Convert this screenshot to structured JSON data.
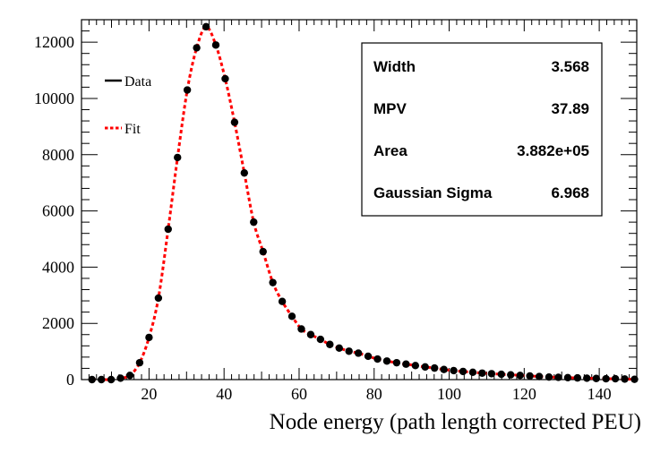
{
  "chart_data": {
    "type": "scatter",
    "title": "",
    "xlabel": "Node energy (path length corrected PEU)",
    "ylabel": "",
    "xlim": [
      2,
      150
    ],
    "ylim": [
      0,
      12800
    ],
    "x_ticks": [
      20,
      40,
      60,
      80,
      100,
      120,
      140
    ],
    "x_tick_labels": [
      "20",
      "40",
      "60",
      "80",
      "100",
      "120",
      "140"
    ],
    "y_ticks": [
      0,
      2000,
      4000,
      6000,
      8000,
      10000,
      12000
    ],
    "y_tick_labels": [
      "0",
      "2000",
      "4000",
      "6000",
      "8000",
      "10000",
      "12000"
    ],
    "legend": {
      "position": "top-left",
      "entries": [
        {
          "label": "Data",
          "style": "line",
          "color": "#000000"
        },
        {
          "label": "Fit",
          "style": "dotted",
          "color": "#ff0000"
        }
      ]
    },
    "stats_box": {
      "position": "top-right",
      "rows": [
        {
          "label": "Width",
          "value": "3.568"
        },
        {
          "label": "MPV",
          "value": "37.89"
        },
        {
          "label": "Area",
          "value": "3.882e+05"
        },
        {
          "label": "Gaussian Sigma",
          "value": "6.968"
        }
      ]
    },
    "series": [
      {
        "name": "Data",
        "color": "#000000",
        "marker": "circle",
        "x": [
          4.8,
          7.3,
          9.9,
          12.4,
          14.9,
          17.5,
          20.0,
          22.5,
          25.1,
          27.6,
          30.2,
          32.7,
          35.2,
          37.8,
          40.3,
          42.8,
          45.4,
          47.9,
          50.4,
          53.0,
          55.5,
          58.1,
          60.6,
          63.1,
          65.7,
          68.2,
          70.7,
          73.3,
          75.8,
          78.4,
          80.9,
          83.4,
          86.0,
          88.5,
          91.0,
          93.6,
          96.1,
          98.6,
          101.2,
          103.7,
          106.3,
          108.8,
          111.3,
          113.9,
          116.4,
          118.9,
          121.5,
          124.0,
          126.6,
          129.1,
          131.6,
          134.2,
          136.7,
          139.2,
          141.8,
          144.3,
          146.8,
          149.4
        ],
        "values": [
          0,
          0,
          0,
          50,
          150,
          600,
          1500,
          2900,
          5350,
          7900,
          10300,
          11800,
          12550,
          11900,
          10700,
          9150,
          7350,
          5600,
          4550,
          3450,
          2780,
          2250,
          1800,
          1600,
          1430,
          1250,
          1120,
          1010,
          940,
          830,
          730,
          660,
          600,
          550,
          500,
          450,
          410,
          360,
          320,
          290,
          260,
          230,
          210,
          190,
          170,
          150,
          130,
          110,
          90,
          80,
          70,
          60,
          50,
          40,
          30,
          30,
          20,
          10
        ]
      },
      {
        "name": "Fit",
        "color": "#ff0000",
        "style": "dotted",
        "function": "Landau convolved with Gaussian",
        "parameters": {
          "Width": 3.568,
          "MPV": 37.89,
          "Area": 388200,
          "Gaussian Sigma": 6.968
        }
      }
    ]
  }
}
